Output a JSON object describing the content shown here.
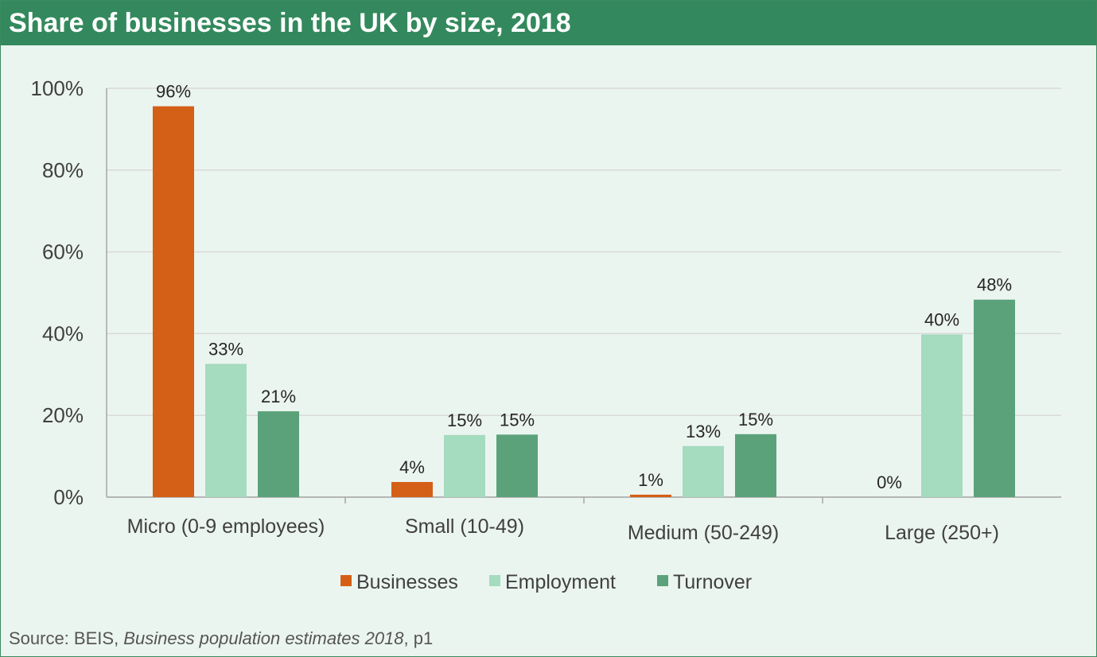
{
  "chart_data": {
    "type": "bar",
    "title": "Share of businesses in the UK by size, 2018",
    "categories": [
      "Micro (0-9 employees)",
      "Small (10-49)",
      "Medium (50-249)",
      "Large (250+)"
    ],
    "series": [
      {
        "name": "Businesses",
        "values": [
          95.6,
          3.7,
          0.6,
          0.0
        ],
        "labels": [
          "96%",
          "4%",
          "1%",
          "0%"
        ],
        "color": "#d45f16"
      },
      {
        "name": "Employment",
        "values": [
          32.6,
          15.2,
          12.5,
          39.8
        ],
        "labels": [
          "33%",
          "15%",
          "13%",
          "40%"
        ],
        "color": "#a5dbbf"
      },
      {
        "name": "Turnover",
        "values": [
          21.0,
          15.3,
          15.4,
          48.3
        ],
        "labels": [
          "21%",
          "15%",
          "15%",
          "48%"
        ],
        "color": "#5ba27b"
      }
    ],
    "ylim": [
      0,
      100
    ],
    "yticks": [
      0,
      20,
      40,
      60,
      80,
      100
    ],
    "ytick_labels": [
      "0%",
      "20%",
      "40%",
      "60%",
      "80%",
      "100%"
    ],
    "grid": true,
    "legend": "bottom"
  },
  "colors": {
    "header": "#33895d",
    "background": "#ebf5ef",
    "gridline": "#d9d9d9"
  },
  "source": {
    "prefix": "Source: BEIS, ",
    "publication": "Business population estimates 2018",
    "suffix": ",  p1"
  }
}
